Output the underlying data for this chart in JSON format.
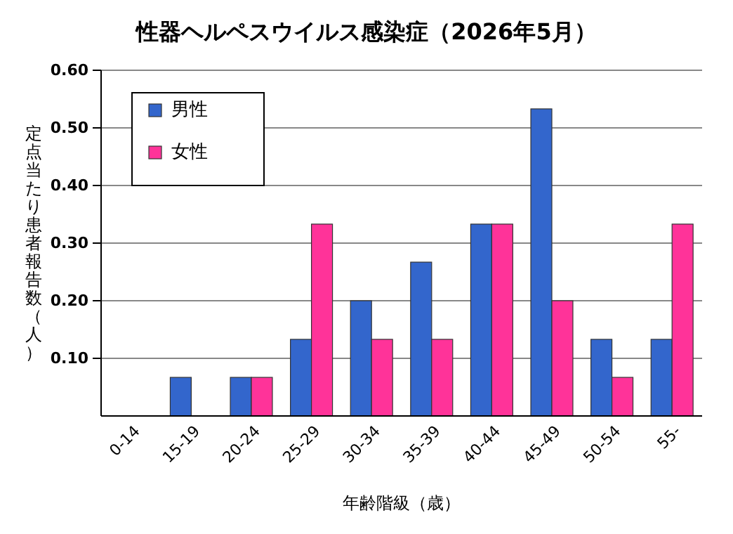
{
  "chart_data": {
    "type": "bar",
    "title": "性器ヘルペスウイルス感染症（2026年5月）",
    "xlabel": "年齢階級（歳）",
    "ylabel": "定点当たり患者報告数（人）",
    "categories": [
      "0-14",
      "15-19",
      "20-24",
      "25-29",
      "30-34",
      "35-39",
      "40-44",
      "45-49",
      "50-54",
      "55-"
    ],
    "series": [
      {
        "name": "男性",
        "color": "#3366cc",
        "values": [
          0,
          0.067,
          0.067,
          0.133,
          0.2,
          0.267,
          0.333,
          0.533,
          0.133,
          0.133
        ]
      },
      {
        "name": "女性",
        "color": "#ff3399",
        "values": [
          0,
          0,
          0.067,
          0.333,
          0.133,
          0.133,
          0.333,
          0.2,
          0.067,
          0.333
        ]
      }
    ],
    "ylim": [
      0,
      0.6
    ],
    "yticks": [
      {
        "value": 0.1,
        "label": "0.10"
      },
      {
        "value": 0.2,
        "label": "0.20"
      },
      {
        "value": 0.3,
        "label": "0.30"
      },
      {
        "value": 0.4,
        "label": "0.40"
      },
      {
        "value": 0.5,
        "label": "0.50"
      },
      {
        "value": 0.6,
        "label": "0.60"
      }
    ],
    "grid": "y",
    "legend": "top left"
  }
}
